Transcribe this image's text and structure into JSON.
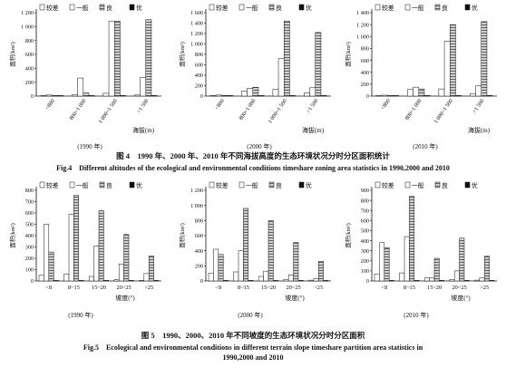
{
  "colors": {
    "poor": "#ffffff",
    "general": "#ffffff",
    "good": "#9a9a9a",
    "excellent": "#111111"
  },
  "legend": [
    "较差",
    "一般",
    "良",
    "优"
  ],
  "fig4": {
    "caption_cn": "图 4　1990 年、2000 年、2010 年不同海拔高度的生态环境状况分时分区面积统计",
    "caption_en": "Fig.4　Different altitudes of the ecological and environmental conditions timeshare zoning area statistics in 1990,2000 and 2010"
  },
  "fig5": {
    "caption_cn": "图 5　1990、2000、2010 年不同坡度的生态环境状况分时分区面积",
    "caption_en_1": "Fig.5　Ecological and environmental conditions in different terrain slope timeshare partition area statistics in",
    "caption_en_2": "1990,2000 and 2010"
  },
  "chart_data": [
    {
      "type": "bar",
      "year_label": "(1990 年)",
      "ylabel": "面积(km²)",
      "xlabel": "海拔(m)",
      "ylim": [
        0,
        1200
      ],
      "yticks": [
        0,
        200,
        400,
        600,
        800,
        1000,
        1200
      ],
      "ytick_labels": [
        "0",
        "200",
        "400",
        "600",
        "800",
        "1 000",
        "1 200"
      ],
      "categories": [
        "<800",
        "800~1 000",
        "1 000~1 500",
        ">1 500"
      ],
      "series": [
        {
          "name": "较差",
          "values": [
            8,
            20,
            40,
            15
          ]
        },
        {
          "name": "一般",
          "values": [
            15,
            260,
            1080,
            270
          ]
        },
        {
          "name": "良",
          "values": [
            5,
            45,
            1080,
            1100
          ]
        },
        {
          "name": "优",
          "values": [
            0,
            2,
            5,
            5
          ]
        }
      ]
    },
    {
      "type": "bar",
      "year_label": "(2000 年)",
      "ylabel": "面积(km²)",
      "xlabel": "海拔(m)",
      "ylim": [
        0,
        1600
      ],
      "yticks": [
        0,
        200,
        400,
        600,
        800,
        1000,
        1200,
        1400,
        1600
      ],
      "ytick_labels": [
        "0",
        "200",
        "400",
        "600",
        "800",
        "1 000",
        "1 200",
        "1 400",
        "1 600"
      ],
      "categories": [
        "<800",
        "800~1 000",
        "1 000~1 500",
        ">1 500"
      ],
      "series": [
        {
          "name": "较差",
          "values": [
            10,
            100,
            130,
            60
          ]
        },
        {
          "name": "一般",
          "values": [
            20,
            150,
            720,
            160
          ]
        },
        {
          "name": "良",
          "values": [
            10,
            170,
            1440,
            1220
          ]
        },
        {
          "name": "优",
          "values": [
            0,
            2,
            5,
            3
          ]
        }
      ]
    },
    {
      "type": "bar",
      "year_label": "(2010 年)",
      "ylabel": "面积(km²)",
      "xlabel": "海拔(m)",
      "ylim": [
        0,
        1400
      ],
      "yticks": [
        0,
        200,
        400,
        600,
        800,
        1000,
        1200,
        1400
      ],
      "ytick_labels": [
        "0",
        "200",
        "400",
        "600",
        "800",
        "1 000",
        "1 200",
        "1 400"
      ],
      "categories": [
        "<800",
        "800~1 000",
        "1 000~1 500",
        ">1 500"
      ],
      "series": [
        {
          "name": "较差",
          "values": [
            12,
            110,
            120,
            40
          ]
        },
        {
          "name": "一般",
          "values": [
            15,
            150,
            920,
            170
          ]
        },
        {
          "name": "良",
          "values": [
            8,
            120,
            1200,
            1250
          ]
        },
        {
          "name": "优",
          "values": [
            0,
            2,
            5,
            3
          ]
        }
      ]
    },
    {
      "type": "bar",
      "year_label": "(1990 年)",
      "ylabel": "面积(km²)",
      "xlabel": "坡度(°)",
      "ylim": [
        0,
        800
      ],
      "yticks": [
        0,
        100,
        200,
        300,
        400,
        500,
        600,
        700,
        800
      ],
      "ytick_labels": [
        "0",
        "100",
        "200",
        "300",
        "400",
        "500",
        "600",
        "700",
        "800"
      ],
      "categories": [
        "<8",
        "8~15",
        "15~20",
        "20~25",
        ">25"
      ],
      "series": [
        {
          "name": "较差",
          "values": [
            50,
            60,
            40,
            10,
            5
          ]
        },
        {
          "name": "一般",
          "values": [
            500,
            590,
            310,
            150,
            65
          ]
        },
        {
          "name": "良",
          "values": [
            255,
            755,
            620,
            410,
            220
          ]
        },
        {
          "name": "优",
          "values": [
            3,
            3,
            3,
            2,
            1
          ]
        }
      ]
    },
    {
      "type": "bar",
      "year_label": "(2000 年)",
      "ylabel": "面积(km²)",
      "xlabel": "坡度(°)",
      "ylim": [
        0,
        1200
      ],
      "yticks": [
        0,
        200,
        400,
        600,
        800,
        1000,
        1200
      ],
      "ytick_labels": [
        "0",
        "200",
        "400",
        "600",
        "800",
        "1 000",
        "1 200"
      ],
      "categories": [
        "<8",
        "8~15",
        "15~20",
        "20~25",
        ">25"
      ],
      "series": [
        {
          "name": "较差",
          "values": [
            100,
            120,
            60,
            20,
            10
          ]
        },
        {
          "name": "一般",
          "values": [
            420,
            400,
            130,
            80,
            30
          ]
        },
        {
          "name": "良",
          "values": [
            350,
            960,
            800,
            510,
            260
          ]
        },
        {
          "name": "优",
          "values": [
            3,
            3,
            3,
            2,
            1
          ]
        }
      ]
    },
    {
      "type": "bar",
      "year_label": "(2010 年)",
      "ylabel": "面积(km²)",
      "xlabel": "坡度(°)",
      "ylim": [
        0,
        900
      ],
      "yticks": [
        0,
        100,
        200,
        300,
        400,
        500,
        600,
        700,
        800,
        900
      ],
      "ytick_labels": [
        "0",
        "100",
        "200",
        "300",
        "400",
        "500",
        "600",
        "700",
        "800",
        "900"
      ],
      "categories": [
        "<8",
        "8~15",
        "15~20",
        "20~25",
        ">25"
      ],
      "series": [
        {
          "name": "较差",
          "values": [
            70,
            80,
            30,
            15,
            8
          ]
        },
        {
          "name": "一般",
          "values": [
            380,
            440,
            30,
            100,
            30
          ]
        },
        {
          "name": "良",
          "values": [
            330,
            840,
            225,
            425,
            245
          ]
        },
        {
          "name": "优",
          "values": [
            3,
            3,
            3,
            2,
            1
          ]
        }
      ]
    }
  ]
}
